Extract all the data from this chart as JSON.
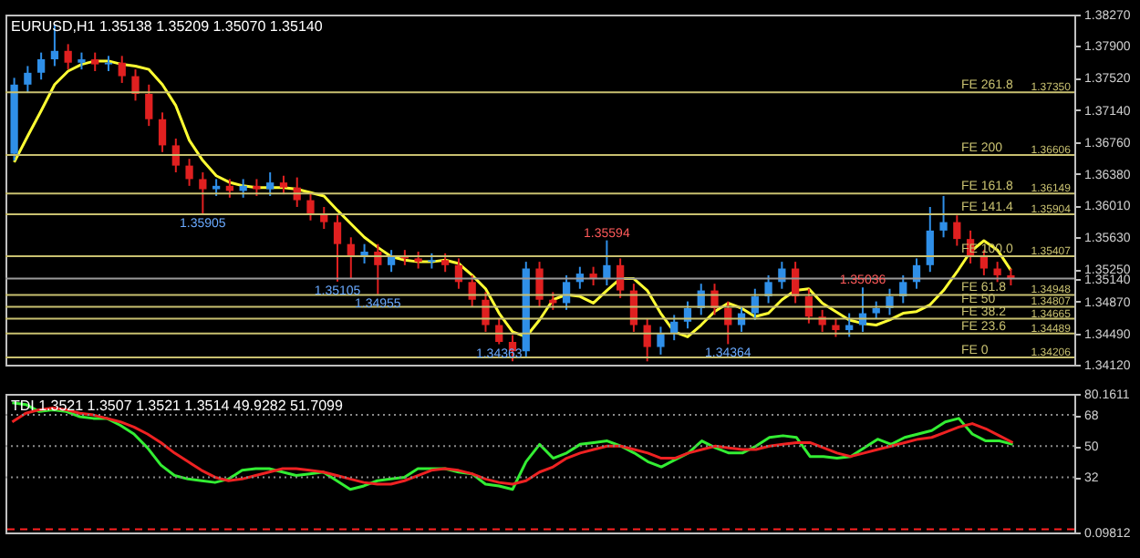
{
  "chart_data": [
    {
      "type": "candlestick",
      "title": "EURUSD,H1  1.35138 1.35209 1.35070 1.35140",
      "tick_labels": "y",
      "categories": [
        null,
        null,
        null,
        null,
        null,
        null,
        null,
        null,
        null,
        null,
        null,
        null,
        null,
        null,
        null,
        null,
        null,
        null,
        null,
        null,
        null,
        null,
        null,
        null,
        null,
        null,
        null,
        null,
        null,
        null,
        null,
        null,
        null,
        null,
        null,
        null,
        null,
        null,
        null,
        null,
        null,
        null,
        null,
        null,
        null,
        null,
        null,
        null,
        null,
        null,
        null,
        null,
        null,
        null,
        null,
        null,
        null,
        null,
        null,
        null,
        null,
        null,
        null,
        null,
        null,
        null,
        null,
        null,
        null,
        null,
        null,
        null,
        null,
        null,
        null
      ],
      "ohlc": [
        [
          1.3662,
          1.3752,
          1.3654,
          1.3744
        ],
        [
          1.3744,
          1.3766,
          1.3735,
          1.3758
        ],
        [
          1.3758,
          1.3782,
          1.375,
          1.3774
        ],
        [
          1.3774,
          1.3815,
          1.3766,
          1.3784
        ],
        [
          1.3784,
          1.3792,
          1.3762,
          1.377
        ],
        [
          1.377,
          1.3782,
          1.3762,
          1.3774
        ],
        [
          1.3774,
          1.3782,
          1.376,
          1.3768
        ],
        [
          1.3768,
          1.3778,
          1.376,
          1.377
        ],
        [
          1.377,
          1.3778,
          1.3746,
          1.3754
        ],
        [
          1.3754,
          1.3762,
          1.3725,
          1.3733
        ],
        [
          1.3733,
          1.3744,
          1.3695,
          1.3703
        ],
        [
          1.3703,
          1.3711,
          1.3664,
          1.3672
        ],
        [
          1.3672,
          1.368,
          1.364,
          1.3648
        ],
        [
          1.3648,
          1.3656,
          1.3624,
          1.3632
        ],
        [
          1.3632,
          1.364,
          1.35905,
          1.362
        ],
        [
          1.362,
          1.3632,
          1.3612,
          1.3624
        ],
        [
          1.3624,
          1.3632,
          1.361,
          1.3618
        ],
        [
          1.3618,
          1.3632,
          1.361,
          1.3624
        ],
        [
          1.3624,
          1.3632,
          1.3612,
          1.362
        ],
        [
          1.362,
          1.364,
          1.3612,
          1.3628
        ],
        [
          1.3628,
          1.3636,
          1.3614,
          1.3622
        ],
        [
          1.3622,
          1.3634,
          1.3599,
          1.3607
        ],
        [
          1.3607,
          1.3616,
          1.3583,
          1.3591
        ],
        [
          1.3591,
          1.3599,
          1.3573,
          1.3581
        ],
        [
          1.3581,
          1.3589,
          1.35105,
          1.3555
        ],
        [
          1.3555,
          1.3563,
          1.3514,
          1.354
        ],
        [
          1.354,
          1.3555,
          1.3532,
          1.3546
        ],
        [
          1.3546,
          1.3555,
          1.34955,
          1.353
        ],
        [
          1.353,
          1.3548,
          1.3522,
          1.354
        ],
        [
          1.354,
          1.3548,
          1.353,
          1.3538
        ],
        [
          1.3538,
          1.3546,
          1.3526,
          1.3534
        ],
        [
          1.3534,
          1.3544,
          1.3526,
          1.3536
        ],
        [
          1.3536,
          1.3544,
          1.3522,
          1.353
        ],
        [
          1.353,
          1.3538,
          1.3502,
          1.351
        ],
        [
          1.351,
          1.3518,
          1.3481,
          1.3489
        ],
        [
          1.3489,
          1.3498,
          1.3451,
          1.3459
        ],
        [
          1.3459,
          1.3467,
          1.34363,
          1.3439
        ],
        [
          1.3439,
          1.3447,
          1.3416,
          1.3428
        ],
        [
          1.3428,
          1.3534,
          1.342,
          1.3526
        ],
        [
          1.3526,
          1.3534,
          1.3481,
          1.3489
        ],
        [
          1.3489,
          1.3498,
          1.3477,
          1.3485
        ],
        [
          1.3485,
          1.3518,
          1.3477,
          1.351
        ],
        [
          1.351,
          1.3528,
          1.3502,
          1.352
        ],
        [
          1.352,
          1.3528,
          1.3506,
          1.3514
        ],
        [
          1.3514,
          1.35594,
          1.3506,
          1.353
        ],
        [
          1.353,
          1.3538,
          1.3491,
          1.35
        ],
        [
          1.35,
          1.3508,
          1.3451,
          1.3459
        ],
        [
          1.3459,
          1.3467,
          1.3416,
          1.3433
        ],
        [
          1.3433,
          1.3457,
          1.3424,
          1.3449
        ],
        [
          1.3449,
          1.3471,
          1.3441,
          1.3463
        ],
        [
          1.3463,
          1.3487,
          1.3455,
          1.3479
        ],
        [
          1.3479,
          1.3508,
          1.3471,
          1.35
        ],
        [
          1.35,
          1.3508,
          1.3471,
          1.3479
        ],
        [
          1.3479,
          1.3487,
          1.34364,
          1.3459
        ],
        [
          1.3459,
          1.3481,
          1.3451,
          1.3473
        ],
        [
          1.3473,
          1.3502,
          1.3465,
          1.3493
        ],
        [
          1.3493,
          1.3518,
          1.3485,
          1.351
        ],
        [
          1.351,
          1.3534,
          1.3502,
          1.3526
        ],
        [
          1.3526,
          1.3534,
          1.3485,
          1.3493
        ],
        [
          1.3493,
          1.3502,
          1.3461,
          1.3469
        ],
        [
          1.3469,
          1.3477,
          1.3451,
          1.3459
        ],
        [
          1.3459,
          1.3467,
          1.3445,
          1.3453
        ],
        [
          1.3453,
          1.3473,
          1.3445,
          1.3459
        ],
        [
          1.3459,
          1.35036,
          1.3451,
          1.3473
        ],
        [
          1.3473,
          1.3487,
          1.3467,
          1.3479
        ],
        [
          1.3479,
          1.3502,
          1.3471,
          1.3493
        ],
        [
          1.3493,
          1.3518,
          1.3485,
          1.351
        ],
        [
          1.351,
          1.3538,
          1.3502,
          1.353
        ],
        [
          1.353,
          1.3599,
          1.3522,
          1.3571
        ],
        [
          1.3571,
          1.3612,
          1.3563,
          1.3581
        ],
        [
          1.3581,
          1.3589,
          1.3553,
          1.3561
        ],
        [
          1.3561,
          1.3571,
          1.3532,
          1.354
        ],
        [
          1.354,
          1.3548,
          1.3518,
          1.3526
        ],
        [
          1.3526,
          1.3534,
          1.351,
          1.3518
        ],
        [
          1.3518,
          1.3526,
          1.3506,
          1.3514
        ]
      ],
      "colors": [
        "#2f8fe8",
        "#2f8fe8",
        "#2f8fe8",
        "#2f8fe8",
        "#e02020",
        "#2f8fe8",
        "#e02020",
        "#2f8fe8",
        "#e02020",
        "#e02020",
        "#e02020",
        "#e02020",
        "#e02020",
        "#e02020",
        "#e02020",
        "#2f8fe8",
        "#e02020",
        "#2f8fe8",
        "#e02020",
        "#2f8fe8",
        "#e02020",
        "#e02020",
        "#e02020",
        "#e02020",
        "#e02020",
        "#e02020",
        "#2f8fe8",
        "#e02020",
        "#2f8fe8",
        "#e02020",
        "#e02020",
        "#2f8fe8",
        "#e02020",
        "#e02020",
        "#e02020",
        "#e02020",
        "#e02020",
        "#e02020",
        "#2f8fe8",
        "#e02020",
        "#e02020",
        "#2f8fe8",
        "#2f8fe8",
        "#e02020",
        "#2f8fe8",
        "#e02020",
        "#e02020",
        "#e02020",
        "#2f8fe8",
        "#2f8fe8",
        "#2f8fe8",
        "#2f8fe8",
        "#e02020",
        "#e02020",
        "#2f8fe8",
        "#2f8fe8",
        "#2f8fe8",
        "#2f8fe8",
        "#e02020",
        "#e02020",
        "#e02020",
        "#e02020",
        "#2f8fe8",
        "#2f8fe8",
        "#2f8fe8",
        "#2f8fe8",
        "#2f8fe8",
        "#2f8fe8",
        "#2f8fe8",
        "#2f8fe8",
        "#e02020",
        "#e02020",
        "#e02020",
        "#e02020",
        "#e02020"
      ],
      "series": [
        {
          "type": "line",
          "color": "#ffff33",
          "values": [
            1.3652,
            1.3683,
            1.3713,
            1.3744,
            1.376,
            1.3768,
            1.3772,
            1.3772,
            1.3768,
            1.3766,
            1.3762,
            1.3744,
            1.3719,
            1.3678,
            1.3654,
            1.3636,
            1.3628,
            1.3624,
            1.3622,
            1.3622,
            1.3622,
            1.362,
            1.3616,
            1.3612,
            1.3595,
            1.3579,
            1.3563,
            1.3551,
            1.354,
            1.3536,
            1.3534,
            1.3534,
            1.3536,
            1.3532,
            1.3518,
            1.3502,
            1.3473,
            1.3451,
            1.3445,
            1.3465,
            1.3489,
            1.3495,
            1.3493,
            1.3485,
            1.35,
            1.3514,
            1.3514,
            1.35,
            1.3473,
            1.3451,
            1.3445,
            1.3459,
            1.3475,
            1.3485,
            1.3479,
            1.3469,
            1.3473,
            1.3489,
            1.35,
            1.3502,
            1.3485,
            1.3475,
            1.3465,
            1.3461,
            1.3459,
            1.3465,
            1.3473,
            1.3475,
            1.3483,
            1.35,
            1.3522,
            1.3546,
            1.3559,
            1.3548,
            1.3524
          ]
        }
      ],
      "ylim": [
        1.3412,
        1.3827
      ],
      "yticks": [
        {
          "value": 1.3827,
          "label": "1.38270"
        },
        {
          "value": 1.379,
          "label": "1.37900"
        },
        {
          "value": 1.3752,
          "label": "1.37520"
        },
        {
          "value": 1.3714,
          "label": "1.37140"
        },
        {
          "value": 1.3676,
          "label": "1.36760"
        },
        {
          "value": 1.3638,
          "label": "1.36380"
        },
        {
          "value": 1.3601,
          "label": "1.36010"
        },
        {
          "value": 1.3563,
          "label": "1.35630"
        },
        {
          "value": 1.3525,
          "label": "1.35250"
        },
        {
          "value": 1.3514,
          "label": "1.35140"
        },
        {
          "value": 1.3487,
          "label": "1.34870"
        },
        {
          "value": 1.3449,
          "label": "1.34490"
        },
        {
          "value": 1.3412,
          "label": "1.34120"
        }
      ],
      "ref_lines": [
        {
          "axis": "y",
          "value": 1.3735,
          "label": "FE 261.8",
          "color": "#c8c070"
        },
        {
          "axis": "y",
          "value": 1.36606,
          "label": "FE 200",
          "color": "#c8c070"
        },
        {
          "axis": "y",
          "value": 1.36149,
          "label": "FE 161.8",
          "color": "#c8c070"
        },
        {
          "axis": "y",
          "value": 1.35904,
          "label": "FE 141.4",
          "color": "#c8c070"
        },
        {
          "axis": "y",
          "value": 1.35407,
          "label": "FE 100.0",
          "color": "#c8c070"
        },
        {
          "axis": "y",
          "value": 1.34948,
          "label": "FE 61.8",
          "color": "#c8c070"
        },
        {
          "axis": "y",
          "value": 1.34807,
          "label": "FE 50",
          "color": "#c8c070"
        },
        {
          "axis": "y",
          "value": 1.34665,
          "label": "FE 38.2",
          "color": "#c8c070"
        },
        {
          "axis": "y",
          "value": 1.34489,
          "label": "FE 23.6",
          "color": "#c8c070"
        },
        {
          "axis": "y",
          "value": 1.34206,
          "label": "FE 0",
          "color": "#c8c070"
        },
        {
          "axis": "y",
          "value": 1.3514,
          "label": null,
          "color": "#9a9a9a"
        }
      ],
      "annotations": [
        {
          "text": "1.35905",
          "y": 1.35905
        },
        {
          "text": "1.35105",
          "y": 1.35105
        },
        {
          "text": "1.34955",
          "y": 1.34955
        },
        {
          "text": "1.34363",
          "y": 1.34363
        },
        {
          "text": "1.35594",
          "y": 1.35594
        },
        {
          "text": "1.34364",
          "y": 1.34364
        },
        {
          "text": "1.35036",
          "y": 1.35036
        },
        {
          "text": "1.37350",
          "y": 1.3735
        },
        {
          "text": "1.36606",
          "y": 1.36606
        },
        {
          "text": "1.36149",
          "y": 1.36149
        },
        {
          "text": "1.35904",
          "y": 1.35904
        },
        {
          "text": "1.35407",
          "y": 1.35407
        },
        {
          "text": "1.34948",
          "y": 1.34948
        },
        {
          "text": "1.34807",
          "y": 1.34807
        },
        {
          "text": "1.34665",
          "y": 1.34665
        },
        {
          "text": "1.34489",
          "y": 1.34489
        },
        {
          "text": "1.34206",
          "y": 1.34206
        }
      ]
    },
    {
      "type": "line",
      "title": "TDI 1.3521 1.3507 1.3521 1.3514 49.9282 51.7099",
      "tick_labels": "y",
      "categories": [
        null,
        null,
        null,
        null,
        null,
        null,
        null,
        null,
        null,
        null,
        null,
        null,
        null,
        null,
        null,
        null,
        null,
        null,
        null,
        null,
        null,
        null,
        null,
        null,
        null,
        null,
        null,
        null,
        null,
        null,
        null,
        null,
        null,
        null,
        null,
        null,
        null,
        null,
        null,
        null,
        null,
        null,
        null,
        null,
        null,
        null,
        null,
        null,
        null,
        null,
        null,
        null,
        null,
        null,
        null,
        null,
        null,
        null,
        null,
        null,
        null,
        null,
        null,
        null,
        null,
        null,
        null,
        null,
        null,
        null,
        null,
        null,
        null,
        null,
        null
      ],
      "series": [
        {
          "color": "#33ee33",
          "values": [
            75,
            74,
            70,
            71,
            70,
            67,
            66,
            66,
            62,
            57,
            49,
            39,
            33,
            31,
            30,
            29,
            31,
            36,
            37,
            37,
            35,
            33,
            34,
            35,
            30,
            25,
            27,
            30,
            31,
            32,
            37,
            37,
            37,
            35,
            34,
            28,
            27,
            25,
            41,
            51,
            43,
            46,
            51,
            52,
            53,
            50,
            46,
            41,
            38,
            42,
            46,
            53,
            49,
            46,
            46,
            50,
            55,
            56,
            55,
            44,
            44,
            43,
            44,
            49,
            54,
            51,
            55,
            57,
            59,
            64,
            66,
            57,
            53,
            53,
            51
          ]
        },
        {
          "color": "#ee2222",
          "values": [
            64,
            69,
            71,
            72,
            71,
            69,
            68,
            66,
            64,
            61,
            57,
            52,
            46,
            41,
            36,
            32,
            30,
            31,
            33,
            35,
            37,
            37,
            36,
            35,
            33,
            31,
            29,
            28,
            28,
            30,
            33,
            36,
            37,
            36,
            34,
            31,
            29,
            28,
            30,
            35,
            38,
            43,
            46,
            48,
            50,
            50,
            48,
            46,
            43,
            43,
            46,
            48,
            50,
            49,
            48,
            48,
            50,
            51,
            52,
            52,
            49,
            46,
            44,
            46,
            48,
            50,
            52,
            54,
            55,
            58,
            61,
            63,
            60,
            56,
            52
          ]
        }
      ],
      "ylim": [
        0.09812,
        80.1611
      ],
      "yticks": [
        80.1611,
        68,
        50,
        32,
        0.09812
      ],
      "ref_lines": [
        {
          "axis": "y",
          "value": 68,
          "label": null,
          "color": "#8a8a8a",
          "line_style": "dotted"
        },
        {
          "axis": "y",
          "value": 50,
          "label": null,
          "color": "#8a8a8a",
          "line_style": "dotted"
        },
        {
          "axis": "y",
          "value": 32,
          "label": null,
          "color": "#8a8a8a",
          "line_style": "dotted"
        },
        {
          "axis": "y",
          "value": 2,
          "label": null,
          "color": "#ff2020",
          "line_style": "dashed"
        }
      ]
    }
  ]
}
